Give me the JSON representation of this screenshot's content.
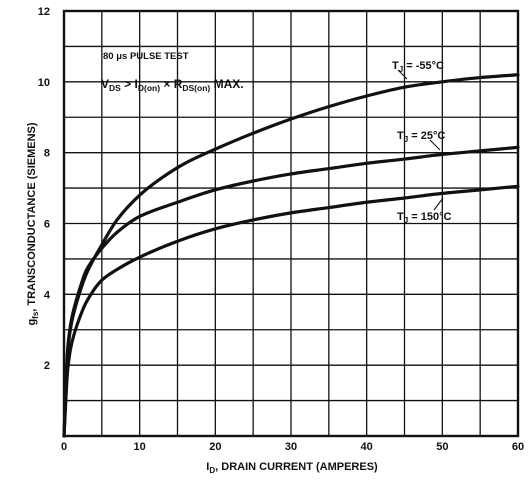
{
  "chart_data": {
    "type": "line",
    "title": "",
    "xlabel": {
      "prefix": "I",
      "sub": "D",
      "suffix": ", DRAIN CURRENT (AMPERES)"
    },
    "ylabel": {
      "prefix": "g",
      "sub": "fs",
      "suffix": ", TRANSCONDUCTANCE (SIEMENS)"
    },
    "xlim": [
      0,
      60
    ],
    "ylim": [
      0,
      12
    ],
    "x_ticks": [
      0,
      10,
      20,
      30,
      40,
      50,
      60
    ],
    "y_ticks": [
      2,
      4,
      6,
      8,
      10,
      12
    ],
    "x_ticks_labels": [
      "0",
      "10",
      "20",
      "30",
      "40",
      "50",
      "60"
    ],
    "y_ticks_labels": [
      "2",
      "4",
      "6",
      "8",
      "10",
      "12"
    ],
    "grid": true,
    "grid_x_step": 5,
    "grid_y_step": 1,
    "annotations": {
      "pulse": "80 μs PULSE TEST",
      "cond_v": "V",
      "cond_v_sub": "DS",
      "cond_gt": " > I",
      "cond_i_sub": "D(on)",
      "cond_times": " × R",
      "cond_r_sub": "DS(on)",
      "cond_max": " MAX."
    },
    "series": [
      {
        "name": "T_J = -55°C",
        "label_main": "T",
        "label_sub": "J",
        "label_rest": " = -55°C",
        "points": [
          [
            0,
            0
          ],
          [
            0.5,
            2.4
          ],
          [
            1,
            3.2
          ],
          [
            2,
            4.0
          ],
          [
            3,
            4.6
          ],
          [
            5,
            5.4
          ],
          [
            7,
            6.1
          ],
          [
            10,
            6.8
          ],
          [
            13,
            7.3
          ],
          [
            16,
            7.7
          ],
          [
            20,
            8.1
          ],
          [
            25,
            8.55
          ],
          [
            30,
            8.95
          ],
          [
            35,
            9.3
          ],
          [
            40,
            9.6
          ],
          [
            45,
            9.85
          ],
          [
            50,
            10.0
          ],
          [
            55,
            10.12
          ],
          [
            60,
            10.2
          ]
        ]
      },
      {
        "name": "T_J = 25°C",
        "label_main": "T",
        "label_sub": "J",
        "label_rest": " = 25°C",
        "points": [
          [
            0,
            0
          ],
          [
            0.5,
            2.5
          ],
          [
            1,
            3.3
          ],
          [
            2,
            4.1
          ],
          [
            3,
            4.7
          ],
          [
            5,
            5.3
          ],
          [
            7,
            5.75
          ],
          [
            10,
            6.2
          ],
          [
            15,
            6.6
          ],
          [
            20,
            6.95
          ],
          [
            25,
            7.2
          ],
          [
            30,
            7.4
          ],
          [
            35,
            7.55
          ],
          [
            40,
            7.7
          ],
          [
            45,
            7.82
          ],
          [
            50,
            7.95
          ],
          [
            55,
            8.05
          ],
          [
            60,
            8.15
          ]
        ]
      },
      {
        "name": "T_J = 150°C",
        "label_main": "T",
        "label_sub": "J",
        "label_rest": " = 150°C",
        "points": [
          [
            0,
            0
          ],
          [
            0.5,
            1.9
          ],
          [
            1,
            2.6
          ],
          [
            2,
            3.3
          ],
          [
            3,
            3.8
          ],
          [
            5,
            4.4
          ],
          [
            7,
            4.7
          ],
          [
            10,
            5.05
          ],
          [
            15,
            5.5
          ],
          [
            20,
            5.85
          ],
          [
            25,
            6.1
          ],
          [
            30,
            6.3
          ],
          [
            35,
            6.45
          ],
          [
            40,
            6.6
          ],
          [
            45,
            6.72
          ],
          [
            50,
            6.85
          ],
          [
            55,
            6.95
          ],
          [
            60,
            7.05
          ]
        ]
      }
    ]
  }
}
